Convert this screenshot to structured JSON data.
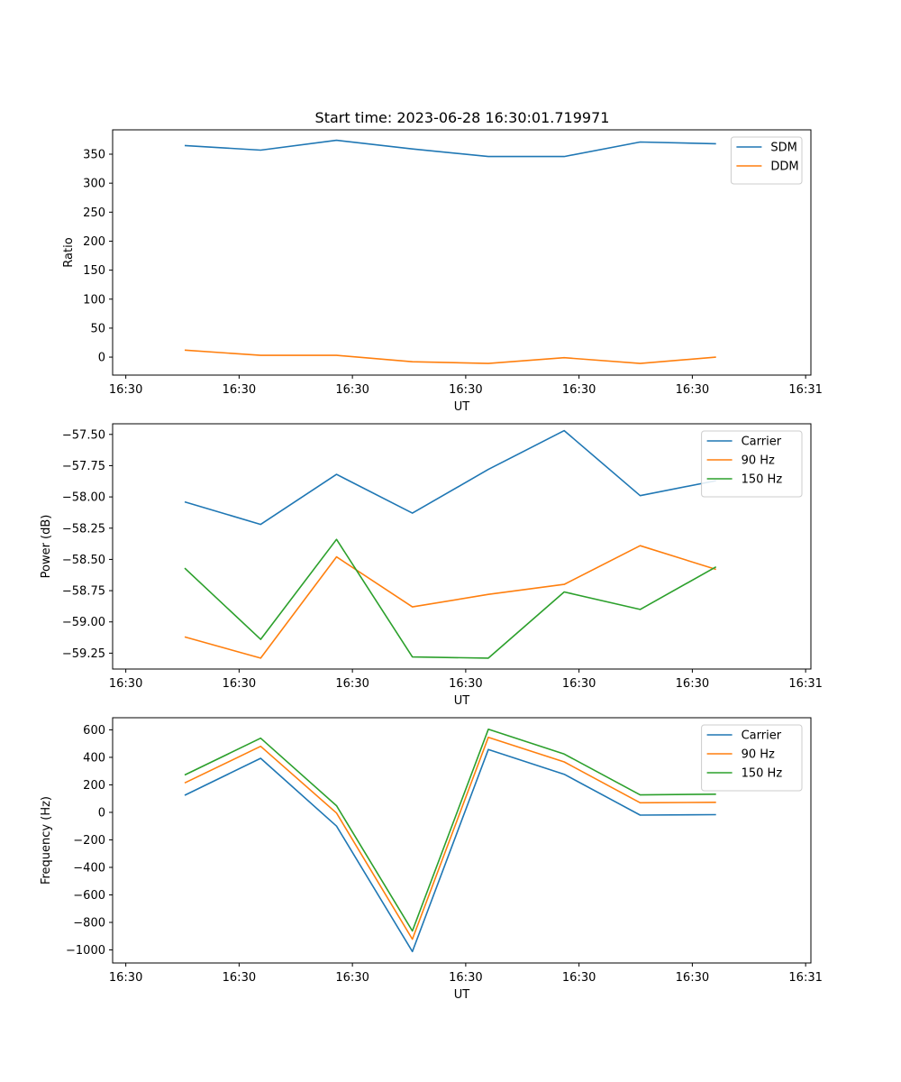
{
  "figure": {
    "title": "Start time: 2023-06-28 16:30:01.719971"
  },
  "chart_data": [
    {
      "type": "line",
      "title": "Start time: 2023-06-28 16:30:01.719971",
      "xlabel": "UT",
      "ylabel": "Ratio",
      "x_tick_labels": [
        "16:30",
        "16:30",
        "16:30",
        "16:30",
        "16:30",
        "16:30",
        "16:31"
      ],
      "y_ticks": [
        0,
        50,
        100,
        150,
        200,
        250,
        300,
        350
      ],
      "y_tick_labels": [
        "0",
        "50",
        "100",
        "150",
        "200",
        "250",
        "300",
        "350"
      ],
      "ylim": [
        -31,
        392
      ],
      "x": [
        0.5,
        1.5,
        2.5,
        3.5,
        4.5,
        5.5,
        6.5,
        7.5
      ],
      "xlim": [
        -0.45,
        8.75
      ],
      "legend_position": "top-right",
      "grid": false,
      "series": [
        {
          "name": "SDM",
          "color": "#1f77b4",
          "values": [
            365,
            357,
            374,
            359,
            346,
            346,
            371,
            368
          ]
        },
        {
          "name": "DDM",
          "color": "#ff7f0e",
          "values": [
            12,
            3,
            3,
            -8,
            -11,
            -1,
            -11,
            0
          ]
        }
      ]
    },
    {
      "type": "line",
      "xlabel": "UT",
      "ylabel": "Power (dB)",
      "x_tick_labels": [
        "16:30",
        "16:30",
        "16:30",
        "16:30",
        "16:30",
        "16:30",
        "16:31"
      ],
      "y_ticks": [
        -59.25,
        -59.0,
        -58.75,
        -58.5,
        -58.25,
        -58.0,
        -57.75,
        -57.5
      ],
      "y_tick_labels": [
        "−59.25",
        "−59.00",
        "−58.75",
        "−58.50",
        "−58.25",
        "−58.00",
        "−57.75",
        "−57.50"
      ],
      "ylim": [
        -59.377,
        -57.415
      ],
      "x": [
        0.5,
        1.5,
        2.5,
        3.5,
        4.5,
        5.5,
        6.5,
        7.5
      ],
      "xlim": [
        -0.45,
        8.75
      ],
      "legend_position": "top-right",
      "grid": false,
      "series": [
        {
          "name": "Carrier",
          "color": "#1f77b4",
          "values": [
            -58.04,
            -58.22,
            -57.82,
            -58.13,
            -57.78,
            -57.47,
            -57.99,
            -57.87
          ]
        },
        {
          "name": "90 Hz",
          "color": "#ff7f0e",
          "values": [
            -59.12,
            -59.29,
            -58.48,
            -58.88,
            -58.78,
            -58.7,
            -58.39,
            -58.58
          ]
        },
        {
          "name": "150 Hz",
          "color": "#2ca02c",
          "values": [
            -58.57,
            -59.14,
            -58.34,
            -59.28,
            -59.29,
            -58.76,
            -58.9,
            -58.56
          ]
        }
      ]
    },
    {
      "type": "line",
      "xlabel": "UT",
      "ylabel": "Frequency (Hz)",
      "x_tick_labels": [
        "16:30",
        "16:30",
        "16:30",
        "16:30",
        "16:30",
        "16:30",
        "16:31"
      ],
      "y_ticks": [
        -1000,
        -800,
        -600,
        -400,
        -200,
        0,
        200,
        400,
        600
      ],
      "y_tick_labels": [
        "−1000",
        "−800",
        "−600",
        "−400",
        "−200",
        "0",
        "200",
        "400",
        "600"
      ],
      "ylim": [
        -1095,
        688
      ],
      "x": [
        0.5,
        1.5,
        2.5,
        3.5,
        4.5,
        5.5,
        6.5,
        7.5
      ],
      "xlim": [
        -0.45,
        8.75
      ],
      "legend_position": "top-right",
      "grid": false,
      "series": [
        {
          "name": "Carrier",
          "color": "#1f77b4",
          "values": [
            124,
            393,
            -100,
            -1012,
            457,
            277,
            -20,
            -17
          ]
        },
        {
          "name": "90 Hz",
          "color": "#ff7f0e",
          "values": [
            214,
            480,
            -5,
            -922,
            546,
            367,
            70,
            73
          ]
        },
        {
          "name": "150 Hz",
          "color": "#2ca02c",
          "values": [
            272,
            539,
            48,
            -862,
            604,
            424,
            127,
            132
          ]
        }
      ]
    }
  ]
}
